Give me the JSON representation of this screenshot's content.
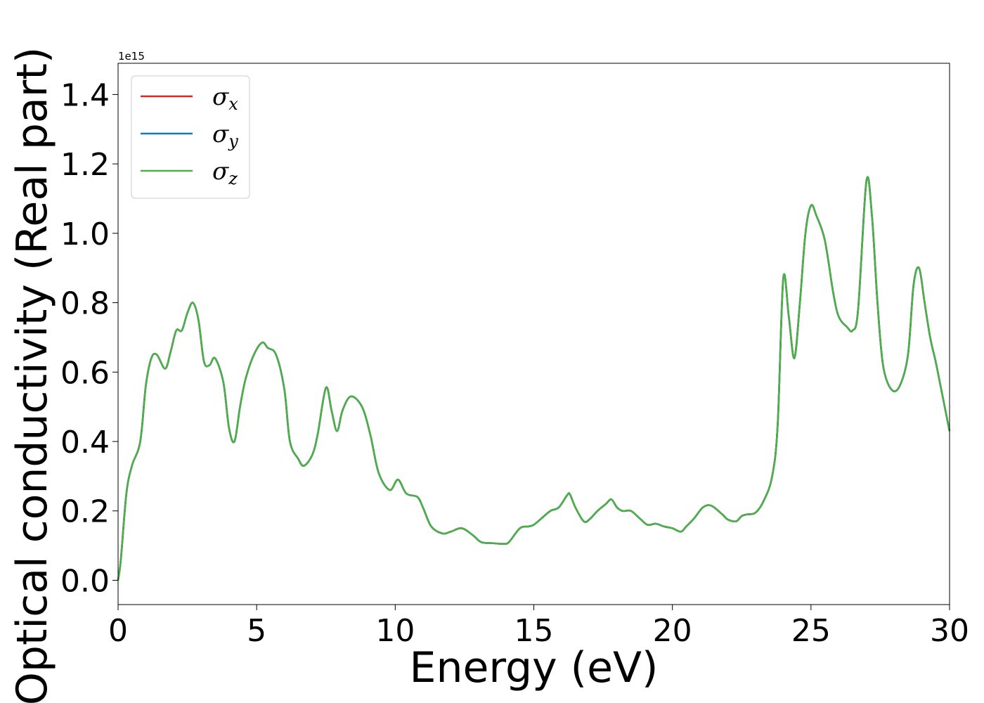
{
  "chart_data": {
    "type": "line",
    "title": "",
    "xlabel": "Energy (eV)",
    "ylabel": "Optical conductivity (Real part)",
    "y_offset_label": "1e15",
    "y_scale_factor": 1000000000000000.0,
    "xlim": [
      0,
      30
    ],
    "ylim": [
      -0.07,
      1.49
    ],
    "x_ticks": [
      0,
      5,
      10,
      15,
      20,
      25,
      30
    ],
    "x_tick_labels": [
      "0",
      "5",
      "10",
      "15",
      "20",
      "25",
      "30"
    ],
    "y_ticks": [
      0.0,
      0.2,
      0.4,
      0.6,
      0.8,
      1.0,
      1.2,
      1.4
    ],
    "y_tick_labels": [
      "0.0",
      "0.2",
      "0.4",
      "0.6",
      "0.8",
      "1.0",
      "1.2",
      "1.4"
    ],
    "grid": false,
    "legend_position": "top-left",
    "x": [
      0,
      0.1,
      0.3,
      0.5,
      0.8,
      1.0,
      1.2,
      1.4,
      1.7,
      1.9,
      2.1,
      2.3,
      2.5,
      2.7,
      2.9,
      3.1,
      3.3,
      3.5,
      3.8,
      4.0,
      4.2,
      4.4,
      4.6,
      4.9,
      5.2,
      5.4,
      5.7,
      6.0,
      6.2,
      6.5,
      6.7,
      7.0,
      7.2,
      7.5,
      7.7,
      7.9,
      8.1,
      8.4,
      8.8,
      9.1,
      9.4,
      9.8,
      10.1,
      10.4,
      10.8,
      11.0,
      11.3,
      11.7,
      12.0,
      12.4,
      12.8,
      13.1,
      13.5,
      13.9,
      14.1,
      14.5,
      14.8,
      15.0,
      15.3,
      15.6,
      15.9,
      16.2,
      16.3,
      16.5,
      16.8,
      17.0,
      17.3,
      17.6,
      17.8,
      18.0,
      18.2,
      18.5,
      18.8,
      19.1,
      19.4,
      19.7,
      20.0,
      20.3,
      20.5,
      20.8,
      21.1,
      21.4,
      21.8,
      22.0,
      22.3,
      22.5,
      22.7,
      23.0,
      23.3,
      23.6,
      23.8,
      24.0,
      24.2,
      24.4,
      24.6,
      24.8,
      25.0,
      25.2,
      25.5,
      25.8,
      26.0,
      26.3,
      26.5,
      26.7,
      27.0,
      27.2,
      27.4,
      27.6,
      27.9,
      28.2,
      28.5,
      28.7,
      28.9,
      29.1,
      29.3,
      29.5,
      29.7,
      30.0
    ],
    "series": [
      {
        "name": "σ_x",
        "label_base": "σ",
        "label_sub": "x",
        "color": "#d62728",
        "values": [
          0.0,
          0.06,
          0.25,
          0.33,
          0.4,
          0.56,
          0.64,
          0.65,
          0.61,
          0.66,
          0.72,
          0.72,
          0.77,
          0.8,
          0.75,
          0.63,
          0.62,
          0.64,
          0.57,
          0.44,
          0.4,
          0.5,
          0.58,
          0.65,
          0.685,
          0.67,
          0.65,
          0.55,
          0.4,
          0.35,
          0.33,
          0.36,
          0.42,
          0.555,
          0.49,
          0.43,
          0.49,
          0.53,
          0.5,
          0.42,
          0.31,
          0.26,
          0.29,
          0.25,
          0.24,
          0.21,
          0.155,
          0.135,
          0.14,
          0.15,
          0.13,
          0.11,
          0.107,
          0.105,
          0.11,
          0.15,
          0.155,
          0.16,
          0.18,
          0.2,
          0.21,
          0.245,
          0.248,
          0.21,
          0.17,
          0.175,
          0.2,
          0.22,
          0.233,
          0.21,
          0.2,
          0.2,
          0.18,
          0.16,
          0.163,
          0.155,
          0.15,
          0.14,
          0.155,
          0.18,
          0.21,
          0.215,
          0.19,
          0.175,
          0.17,
          0.185,
          0.19,
          0.195,
          0.23,
          0.3,
          0.45,
          0.87,
          0.76,
          0.64,
          0.8,
          1.0,
          1.08,
          1.05,
          0.98,
          0.83,
          0.76,
          0.73,
          0.72,
          0.78,
          1.15,
          1.05,
          0.8,
          0.62,
          0.55,
          0.56,
          0.65,
          0.85,
          0.9,
          0.8,
          0.7,
          0.63,
          0.55,
          0.43
        ]
      },
      {
        "name": "σ_y",
        "label_base": "σ",
        "label_sub": "y",
        "color": "#1f77b4",
        "values": [
          0.0,
          0.06,
          0.25,
          0.33,
          0.4,
          0.56,
          0.64,
          0.65,
          0.61,
          0.66,
          0.72,
          0.72,
          0.77,
          0.8,
          0.75,
          0.63,
          0.62,
          0.64,
          0.57,
          0.44,
          0.4,
          0.5,
          0.58,
          0.65,
          0.685,
          0.67,
          0.65,
          0.55,
          0.4,
          0.35,
          0.33,
          0.36,
          0.42,
          0.555,
          0.49,
          0.43,
          0.49,
          0.53,
          0.5,
          0.42,
          0.31,
          0.26,
          0.29,
          0.25,
          0.24,
          0.21,
          0.155,
          0.135,
          0.14,
          0.15,
          0.13,
          0.11,
          0.107,
          0.105,
          0.11,
          0.15,
          0.155,
          0.16,
          0.18,
          0.2,
          0.21,
          0.245,
          0.248,
          0.21,
          0.17,
          0.175,
          0.2,
          0.22,
          0.233,
          0.21,
          0.2,
          0.2,
          0.18,
          0.16,
          0.163,
          0.155,
          0.15,
          0.14,
          0.155,
          0.18,
          0.21,
          0.215,
          0.19,
          0.175,
          0.17,
          0.185,
          0.19,
          0.195,
          0.23,
          0.3,
          0.45,
          0.87,
          0.76,
          0.64,
          0.8,
          1.0,
          1.08,
          1.05,
          0.98,
          0.83,
          0.76,
          0.73,
          0.72,
          0.78,
          1.15,
          1.05,
          0.8,
          0.62,
          0.55,
          0.56,
          0.65,
          0.85,
          0.9,
          0.8,
          0.7,
          0.63,
          0.55,
          0.43
        ]
      },
      {
        "name": "σ_z",
        "label_base": "σ",
        "label_sub": "z",
        "color": "#4daf4a",
        "values": [
          0.0,
          0.06,
          0.25,
          0.33,
          0.4,
          0.56,
          0.64,
          0.65,
          0.61,
          0.66,
          0.72,
          0.72,
          0.77,
          0.8,
          0.75,
          0.63,
          0.62,
          0.64,
          0.57,
          0.44,
          0.4,
          0.5,
          0.58,
          0.65,
          0.685,
          0.67,
          0.65,
          0.55,
          0.4,
          0.35,
          0.33,
          0.36,
          0.42,
          0.555,
          0.49,
          0.43,
          0.49,
          0.53,
          0.5,
          0.42,
          0.31,
          0.26,
          0.29,
          0.25,
          0.24,
          0.21,
          0.155,
          0.135,
          0.14,
          0.15,
          0.13,
          0.11,
          0.107,
          0.105,
          0.11,
          0.15,
          0.155,
          0.16,
          0.18,
          0.2,
          0.21,
          0.245,
          0.248,
          0.21,
          0.17,
          0.175,
          0.2,
          0.22,
          0.233,
          0.21,
          0.2,
          0.2,
          0.18,
          0.16,
          0.163,
          0.155,
          0.15,
          0.14,
          0.155,
          0.18,
          0.21,
          0.215,
          0.19,
          0.175,
          0.17,
          0.185,
          0.19,
          0.195,
          0.23,
          0.3,
          0.45,
          0.87,
          0.76,
          0.64,
          0.8,
          1.0,
          1.08,
          1.05,
          0.98,
          0.83,
          0.76,
          0.73,
          0.72,
          0.78,
          1.15,
          1.05,
          0.8,
          0.62,
          0.55,
          0.56,
          0.65,
          0.85,
          0.9,
          0.8,
          0.7,
          0.63,
          0.55,
          0.43
        ]
      }
    ]
  }
}
